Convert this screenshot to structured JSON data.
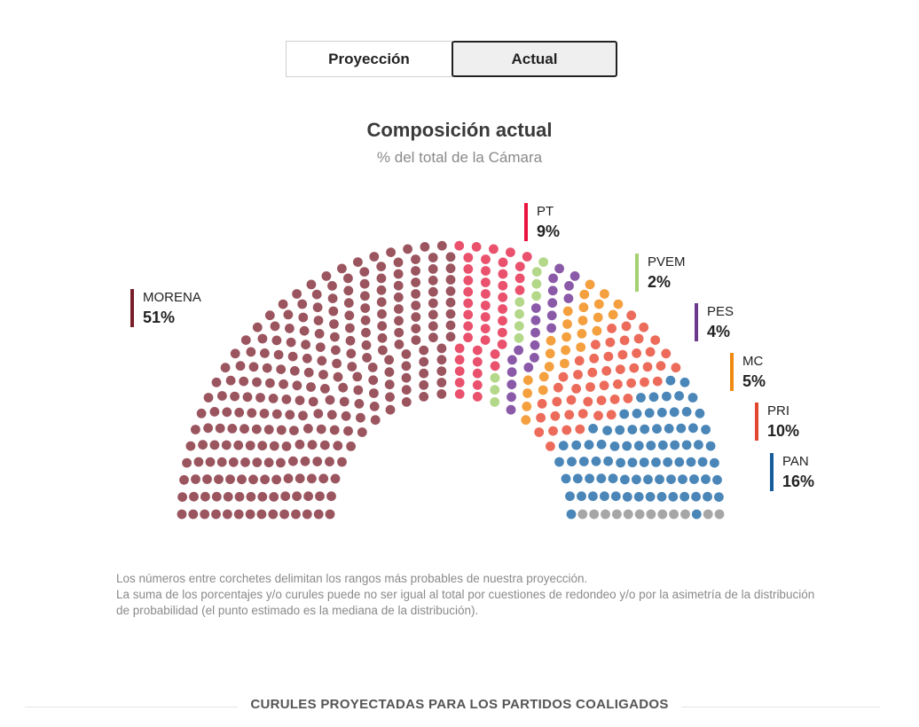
{
  "toggle": {
    "proyeccion_label": "Proyección",
    "actual_label": "Actual",
    "active": "Actual"
  },
  "header": {
    "title": "Composición actual",
    "subtitle": "% del total de la Cámara"
  },
  "chart_data": {
    "type": "parliament",
    "title": "Composición actual",
    "subtitle": "% del total de la Cámara",
    "rows": 14,
    "seat_order": [
      "MORENA",
      "PT",
      "PVEM",
      "PES",
      "MC",
      "PRI",
      "PAN",
      "OTROS"
    ],
    "parties": [
      {
        "name": "MORENA",
        "label": "MORENA",
        "pct_label": "51%",
        "pct": 51,
        "seats": 254,
        "color": "#9b555f",
        "legend_color": "#7a1f2a",
        "legend_offset": 0
      },
      {
        "name": "PT",
        "label": "PT",
        "pct_label": "9%",
        "pct": 9,
        "seats": 44,
        "color": "#e9516d",
        "legend_color": "#e8133f",
        "legend_offset": 0
      },
      {
        "name": "PVEM",
        "label": "PVEM",
        "pct_label": "2%",
        "pct": 2,
        "seats": 11,
        "color": "#b3d88a",
        "legend_color": "#a3d16f",
        "legend_offset": 0
      },
      {
        "name": "PES",
        "label": "PES",
        "pct_label": "4%",
        "pct": 4,
        "seats": 21,
        "color": "#8a5aa8",
        "legend_color": "#6b3a8c",
        "legend_offset": 0
      },
      {
        "name": "MC",
        "label": "MC",
        "pct_label": "5%",
        "pct": 5,
        "seats": 26,
        "color": "#f4a03f",
        "legend_color": "#f08a12",
        "legend_offset": 0
      },
      {
        "name": "MC_highlight",
        "label": "",
        "pct_label": "",
        "pct": 0,
        "seats": 0,
        "color": "#f6d94a",
        "legend_color": "#f6d94a",
        "legend_offset": 0
      },
      {
        "name": "PRI",
        "label": "PRI",
        "pct_label": "10%",
        "pct": 10,
        "seats": 51,
        "color": "#ec6b5a",
        "legend_color": "#e2462e",
        "legend_offset": 0
      },
      {
        "name": "PAN",
        "label": "PAN",
        "pct_label": "16%",
        "pct": 16,
        "seats": 81,
        "color": "#4a86b8",
        "legend_color": "#175d9c",
        "legend_offset": 0
      },
      {
        "name": "OTROS",
        "label": "",
        "pct_label": "",
        "pct": 0,
        "seats": 12,
        "color": "#a6a6a6",
        "legend_color": "#a6a6a6",
        "legend_offset": 0
      }
    ],
    "legend_order": [
      "MORENA",
      "PT",
      "PVEM",
      "PES",
      "MC",
      "PRI",
      "PAN"
    ]
  },
  "notes": {
    "line1": "Los números entre corchetes delimitan los rangos más probables de nuestra proyección.",
    "line2": "La suma de los porcentajes y/o curules puede no ser igual al total por cuestiones de redondeo y/o por la asimetría de la distribución de probabilidad (el punto estimado es la mediana de la distribución)."
  },
  "section": {
    "heading": "CURULES PROYECTADAS PARA LOS PARTIDOS COALIGADOS"
  }
}
